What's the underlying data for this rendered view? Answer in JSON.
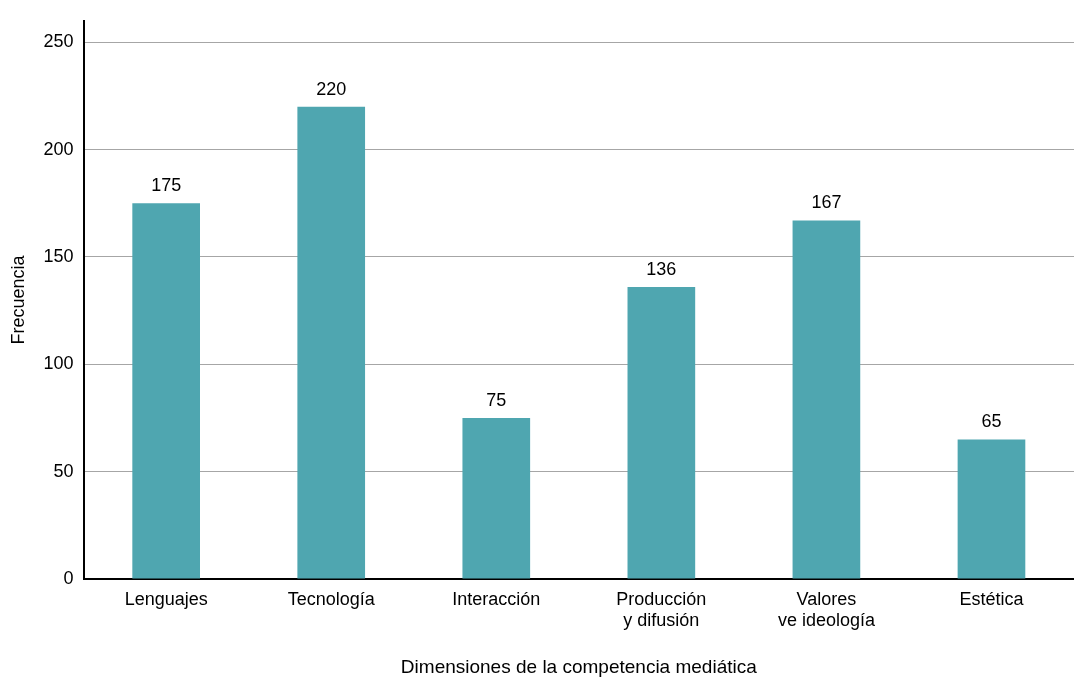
{
  "chart_data": {
    "type": "bar",
    "xlabel": "Dimensiones de la competencia mediática",
    "ylabel": "Frecuencia",
    "categories": [
      "Lenguajes",
      "Tecnología",
      "Interacción",
      "Producción\ny difusión",
      "Valores\nve ideología",
      "Estética"
    ],
    "values": [
      175,
      220,
      75,
      136,
      167,
      65
    ],
    "color": "#4fa6b0",
    "ylim": [
      0,
      260
    ],
    "yticks": [
      0,
      50,
      100,
      150,
      200,
      250
    ],
    "grid": "y",
    "data_labels": true
  }
}
